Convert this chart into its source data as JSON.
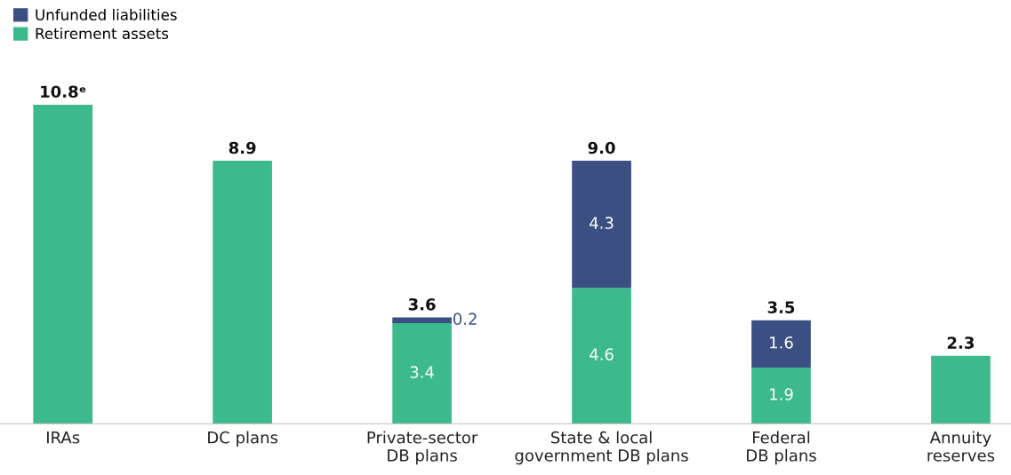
{
  "chart_data": {
    "type": "bar",
    "stacked": true,
    "categories": [
      "IRAs",
      "DC plans",
      "Private-sector\nDB plans",
      "State & local\ngovernment DB plans",
      "Federal\nDB plans",
      "Annuity\nreserves"
    ],
    "series": [
      {
        "name": "Retirement assets",
        "color": "#3dba8c",
        "values": [
          10.8,
          8.9,
          3.4,
          4.6,
          1.9,
          2.3
        ],
        "value_labels": [
          null,
          null,
          "3.4",
          "4.6",
          "1.9",
          null
        ]
      },
      {
        "name": "Unfunded liabilities",
        "color": "#3b4f82",
        "values": [
          null,
          null,
          0.2,
          4.3,
          1.6,
          null
        ],
        "value_labels": [
          null,
          null,
          "0.2",
          "4.3",
          "1.6",
          null
        ]
      }
    ],
    "totals": [
      "10.8ᵉ",
      "8.9",
      "3.6",
      "9.0",
      "3.5",
      "2.3"
    ],
    "legend": "top left"
  }
}
